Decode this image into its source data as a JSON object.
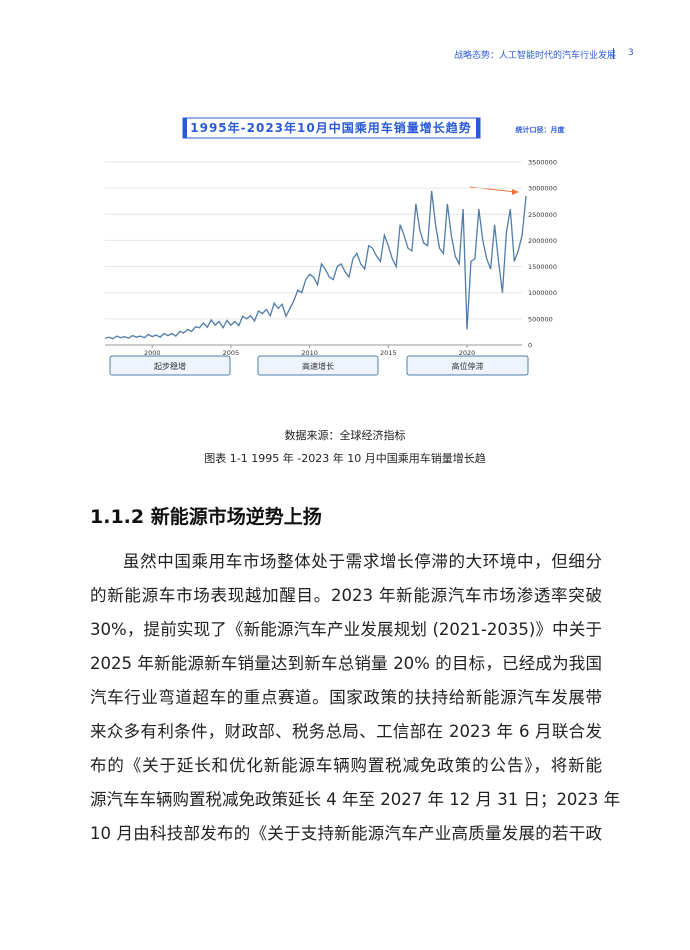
{
  "header": {
    "title": "战略态势：人工智能时代的汽车行业发展",
    "page": "3"
  },
  "chart_data": {
    "type": "line",
    "title": "1995年-2023年10月中国乘用车销量增长趋势",
    "subtitle": "统计口径：月度",
    "color": "#4f7ca8",
    "x": [
      1997,
      1997.25,
      1997.5,
      1997.75,
      1998,
      1998.25,
      1998.5,
      1998.75,
      1999,
      1999.25,
      1999.5,
      1999.75,
      2000,
      2000.25,
      2000.5,
      2000.75,
      2001,
      2001.25,
      2001.5,
      2001.75,
      2002,
      2002.25,
      2002.5,
      2002.75,
      2003,
      2003.25,
      2003.5,
      2003.75,
      2004,
      2004.25,
      2004.5,
      2004.75,
      2005,
      2005.25,
      2005.5,
      2005.75,
      2006,
      2006.25,
      2006.5,
      2006.75,
      2007,
      2007.25,
      2007.5,
      2007.75,
      2008,
      2008.25,
      2008.5,
      2008.75,
      2009,
      2009.25,
      2009.5,
      2009.75,
      2010,
      2010.25,
      2010.5,
      2010.75,
      2011,
      2011.25,
      2011.5,
      2011.75,
      2012,
      2012.25,
      2012.5,
      2012.75,
      2013,
      2013.25,
      2013.5,
      2013.75,
      2014,
      2014.25,
      2014.5,
      2014.75,
      2015,
      2015.25,
      2015.5,
      2015.75,
      2016,
      2016.25,
      2016.5,
      2016.75,
      2017,
      2017.25,
      2017.5,
      2017.75,
      2018,
      2018.25,
      2018.5,
      2018.75,
      2019,
      2019.25,
      2019.5,
      2019.75,
      2020,
      2020.25,
      2020.5,
      2020.75,
      2021,
      2021.25,
      2021.5,
      2021.75,
      2022,
      2022.25,
      2022.5,
      2022.75,
      2023,
      2023.25,
      2023.5,
      2023.75
    ],
    "values": [
      130000,
      150000,
      120000,
      170000,
      140000,
      160000,
      130000,
      180000,
      150000,
      170000,
      140000,
      200000,
      160000,
      190000,
      150000,
      220000,
      180000,
      220000,
      170000,
      260000,
      230000,
      300000,
      260000,
      350000,
      330000,
      420000,
      340000,
      480000,
      380000,
      450000,
      330000,
      470000,
      380000,
      450000,
      370000,
      550000,
      500000,
      560000,
      460000,
      650000,
      600000,
      680000,
      560000,
      800000,
      700000,
      780000,
      550000,
      700000,
      850000,
      1050000,
      1000000,
      1250000,
      1350000,
      1300000,
      1150000,
      1550000,
      1450000,
      1300000,
      1250000,
      1500000,
      1550000,
      1400000,
      1300000,
      1650000,
      1750000,
      1550000,
      1450000,
      1900000,
      1850000,
      1700000,
      1600000,
      2100000,
      1900000,
      1650000,
      1500000,
      2300000,
      2100000,
      1850000,
      1800000,
      2700000,
      2200000,
      1950000,
      1900000,
      2950000,
      2300000,
      1850000,
      1750000,
      2700000,
      2100000,
      1700000,
      1550000,
      2600000,
      300000,
      1600000,
      1650000,
      2600000,
      2000000,
      1650000,
      1450000,
      2300000,
      1600000,
      1000000,
      2150000,
      2600000,
      1600000,
      1800000,
      2100000,
      2850000
    ],
    "xlim": [
      1997,
      2024
    ],
    "xticks": [
      2000,
      2005,
      2010,
      2015,
      2020
    ],
    "ylim": [
      0,
      3500000
    ],
    "yticks": [
      0,
      500000,
      1000000,
      1500000,
      2000000,
      2500000,
      3000000,
      3500000
    ],
    "grid": true,
    "annotations": [
      "起步稳增",
      "高速增长",
      "高位停滞"
    ]
  },
  "caption": {
    "source": "数据来源：全球经济指标",
    "title": "图表 1-1  1995 年 -2023 年 10 月中国乘用车销量增长趋"
  },
  "section": {
    "heading": "1.1.2 新能源市场逆势上扬",
    "lines": [
      "虽然中国乘用车市场整体处于需求增长停滞的大环境中，但细分",
      "的新能源车市场表现越加醒目。2023 年新能源汽车市场渗透率突破",
      "30%，提前实现了《新能源汽车产业发展规划 (2021-2035)》中关于",
      "2025 年新能源新车销量达到新车总销量 20% 的目标，已经成为我国",
      "汽车行业弯道超车的重点赛道。国家政策的扶持给新能源汽车发展带",
      "来众多有利条件，财政部、税务总局、工信部在 2023 年 6 月联合发",
      "布的《关于延长和优化新能源车辆购置税减免政策的公告》，将新能",
      "源汽车车辆购置税减免政策延长 4 年至 2027 年 12 月 31 日；2023 年",
      "10 月由科技部发布的《关于支持新能源汽车产业高质量发展的若干政"
    ]
  }
}
